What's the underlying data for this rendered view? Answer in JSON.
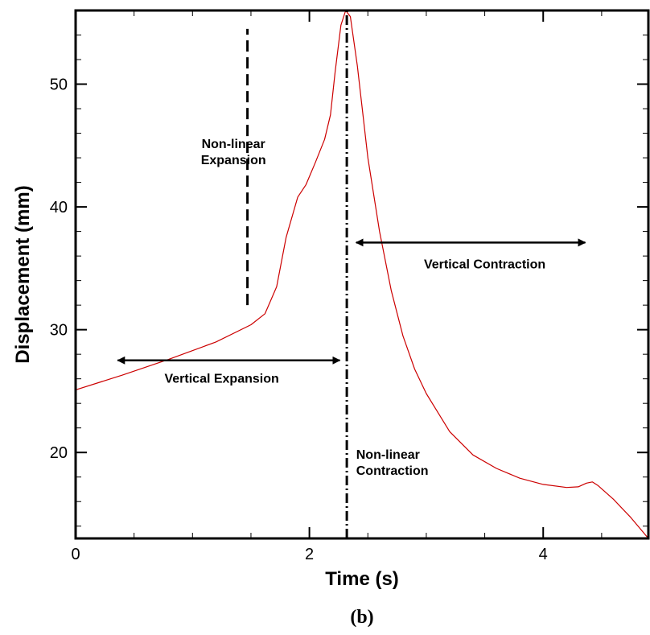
{
  "chart_data": {
    "type": "line",
    "xlabel": "Time (s)",
    "ylabel": "Displacement (mm)",
    "caption": "(b)",
    "xlim": [
      0,
      4.9
    ],
    "ylim": [
      13,
      56
    ],
    "x_ticks": [
      0,
      2,
      4
    ],
    "y_ticks": [
      20,
      30,
      40,
      50
    ],
    "series": [
      {
        "color": "#cc0000",
        "points": [
          [
            0,
            25.1
          ],
          [
            0.4,
            26.3
          ],
          [
            0.8,
            27.6
          ],
          [
            1.2,
            29.0
          ],
          [
            1.5,
            30.4
          ],
          [
            1.62,
            31.3
          ],
          [
            1.72,
            33.5
          ],
          [
            1.8,
            37.5
          ],
          [
            1.9,
            40.8
          ],
          [
            1.97,
            41.8
          ],
          [
            2.05,
            43.6
          ],
          [
            2.13,
            45.5
          ],
          [
            2.18,
            47.5
          ],
          [
            2.22,
            51.0
          ],
          [
            2.27,
            54.8
          ],
          [
            2.31,
            56.0
          ],
          [
            2.35,
            55.5
          ],
          [
            2.41,
            51.5
          ],
          [
            2.5,
            44.0
          ],
          [
            2.6,
            38.0
          ],
          [
            2.7,
            33.2
          ],
          [
            2.8,
            29.5
          ],
          [
            2.9,
            26.8
          ],
          [
            3.0,
            24.8
          ],
          [
            3.2,
            21.7
          ],
          [
            3.4,
            19.8
          ],
          [
            3.6,
            18.7
          ],
          [
            3.8,
            17.9
          ],
          [
            4.0,
            17.4
          ],
          [
            4.2,
            17.15
          ],
          [
            4.3,
            17.2
          ],
          [
            4.37,
            17.5
          ],
          [
            4.42,
            17.6
          ],
          [
            4.47,
            17.3
          ],
          [
            4.6,
            16.2
          ],
          [
            4.75,
            14.7
          ],
          [
            4.9,
            13.0
          ]
        ]
      }
    ],
    "markers": [
      {
        "style": "dashed",
        "x": 1.47,
        "y_from": 32,
        "y_to": 54.5
      },
      {
        "style": "dash-dot",
        "x": 2.32,
        "y_from": 13,
        "y_to": 56
      }
    ],
    "arrows": [
      {
        "x_from": 0.36,
        "x_to": 2.26,
        "y": 27.5
      },
      {
        "x_from": 2.4,
        "x_to": 4.36,
        "y": 37.1
      }
    ],
    "annotations": [
      {
        "lines": [
          "Non-linear",
          "Expansion"
        ],
        "x": 1.35,
        "y": 44.8,
        "anchor": "middle"
      },
      {
        "lines": [
          "Vertical Contraction"
        ],
        "x": 3.5,
        "y": 35.0,
        "anchor": "middle"
      },
      {
        "lines": [
          "Vertical Expansion"
        ],
        "x": 1.25,
        "y": 25.7,
        "anchor": "middle"
      },
      {
        "lines": [
          "Non-linear",
          "Contraction"
        ],
        "x": 2.4,
        "y": 19.5,
        "anchor": "start"
      }
    ]
  }
}
